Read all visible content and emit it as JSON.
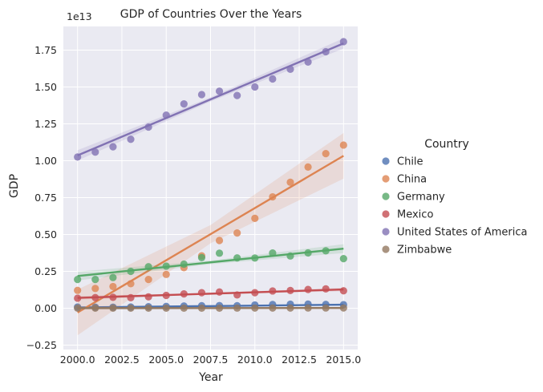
{
  "chart_data": {
    "type": "scatter",
    "title": "GDP of Countries Over the Years",
    "xlabel": "Year",
    "ylabel": "GDP",
    "y_offset_label": "1e13",
    "xlim": [
      1999.2,
      2015.8
    ],
    "ylim": [
      -0.28,
      1.91
    ],
    "y_scale_note": "values in units of 1e13",
    "grid": true,
    "x_ticks": [
      2000,
      2002.5,
      2005,
      2007.5,
      2010,
      2012.5,
      2015
    ],
    "x_tick_labels": [
      "2000.0",
      "2002.5",
      "2005.0",
      "2007.5",
      "2010.0",
      "2012.5",
      "2015.0"
    ],
    "y_ticks": [
      -0.25,
      0,
      0.25,
      0.5,
      0.75,
      1.0,
      1.25,
      1.5,
      1.75
    ],
    "y_tick_labels": [
      "−0.25",
      "0.00",
      "0.25",
      "0.50",
      "0.75",
      "1.00",
      "1.25",
      "1.50",
      "1.75"
    ],
    "legend_title": "Country",
    "legend_position": "right",
    "x": [
      2000,
      2001,
      2002,
      2003,
      2004,
      2005,
      2006,
      2007,
      2008,
      2009,
      2010,
      2011,
      2012,
      2013,
      2014,
      2015
    ],
    "series": [
      {
        "name": "Chile",
        "color": "#4c72b0",
        "values": [
          0.008,
          0.007,
          0.007,
          0.008,
          0.01,
          0.012,
          0.015,
          0.017,
          0.018,
          0.017,
          0.022,
          0.025,
          0.027,
          0.028,
          0.026,
          0.024
        ],
        "fit": [
          0.005,
          0.024
        ],
        "ci_half": 0.006
      },
      {
        "name": "China",
        "color": "#dd8452",
        "values": [
          0.121,
          0.134,
          0.147,
          0.166,
          0.195,
          0.229,
          0.275,
          0.355,
          0.459,
          0.51,
          0.609,
          0.755,
          0.854,
          0.957,
          1.048,
          1.106
        ],
        "fit": [
          -0.029,
          1.033
        ],
        "ci_half": 0.155
      },
      {
        "name": "Germany",
        "color": "#55a868",
        "values": [
          0.195,
          0.195,
          0.208,
          0.25,
          0.281,
          0.285,
          0.299,
          0.343,
          0.373,
          0.341,
          0.34,
          0.374,
          0.354,
          0.375,
          0.389,
          0.336
        ],
        "fit": [
          0.218,
          0.404
        ],
        "ci_half": 0.03
      },
      {
        "name": "Mexico",
        "color": "#c44e52",
        "values": [
          0.068,
          0.072,
          0.074,
          0.071,
          0.077,
          0.087,
          0.097,
          0.105,
          0.11,
          0.09,
          0.105,
          0.117,
          0.12,
          0.127,
          0.131,
          0.118
        ],
        "fit": [
          0.07,
          0.127
        ],
        "ci_half": 0.012
      },
      {
        "name": "United States of America",
        "color": "#8172b3",
        "values": [
          1.025,
          1.058,
          1.094,
          1.145,
          1.228,
          1.309,
          1.385,
          1.448,
          1.471,
          1.442,
          1.5,
          1.554,
          1.62,
          1.669,
          1.739,
          1.807
        ],
        "fit": [
          1.036,
          1.795
        ],
        "ci_half": 0.035
      },
      {
        "name": "Zimbabwe",
        "color": "#937860",
        "values": [
          0.0007,
          0.0007,
          0.0006,
          0.0006,
          0.0006,
          0.0006,
          0.0005,
          0.0005,
          0.0004,
          0.0008,
          0.001,
          0.0012,
          0.0014,
          0.0015,
          0.0015,
          0.0016
        ],
        "fit": [
          0.0005,
          0.0015
        ],
        "ci_half": 0.002
      }
    ]
  }
}
